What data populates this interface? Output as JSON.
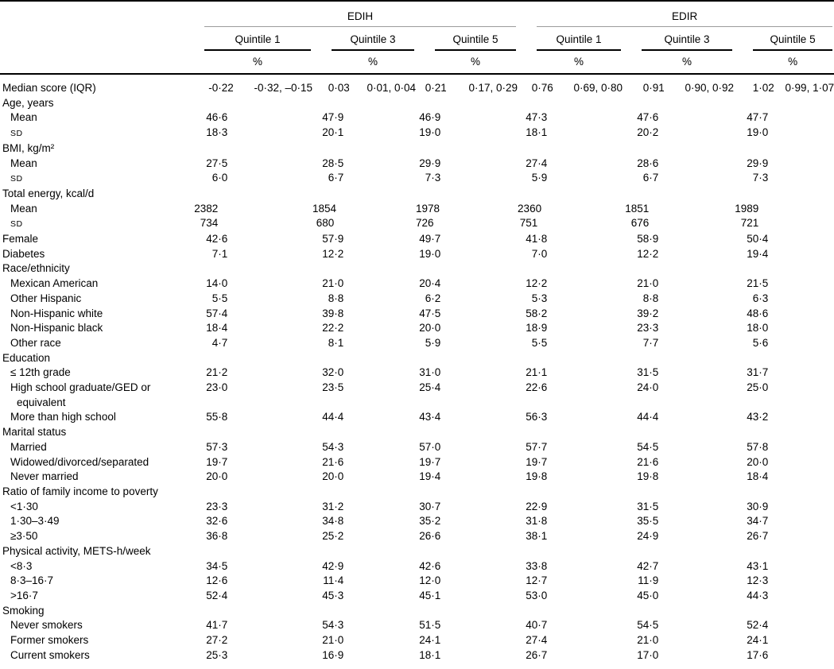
{
  "table": {
    "groups": [
      {
        "label": "EDIH",
        "quintiles": [
          "Quintile 1",
          "Quintile 3",
          "Quintile 5"
        ]
      },
      {
        "label": "EDIR",
        "quintiles": [
          "Quintile 1",
          "Quintile 3",
          "Quintile 5"
        ]
      }
    ],
    "unit_label": "%",
    "rows": [
      {
        "label": "Median score (IQR)",
        "indent": 0,
        "values": [
          "-0·22",
          "0·03",
          "0·21",
          "0·76",
          "0·91",
          "1·02"
        ],
        "iqrs": [
          "-0·32, –0·15",
          "0·01, 0·04",
          "0·17, 0·29",
          "0·69, 0·80",
          "0·90, 0·92",
          "0·99, 1·07"
        ]
      },
      {
        "label": "Age, years",
        "indent": 0
      },
      {
        "label": "Mean",
        "indent": 1,
        "values": [
          "46·6",
          "47·9",
          "46·9",
          "47·3",
          "47·6",
          "47·7"
        ]
      },
      {
        "label": "SD",
        "indent": 1,
        "smallcaps": true,
        "values": [
          "18·3",
          "20·1",
          "19·0",
          "18·1",
          "20·2",
          "19·0"
        ]
      },
      {
        "label": "BMI, kg/m²",
        "indent": 0
      },
      {
        "label": "Mean",
        "indent": 1,
        "values": [
          "27·5",
          "28·5",
          "29·9",
          "27·4",
          "28·6",
          "29·9"
        ]
      },
      {
        "label": "SD",
        "indent": 1,
        "smallcaps": true,
        "values": [
          "6·0",
          "6·7",
          "7·3",
          "5·9",
          "6·7",
          "7·3"
        ]
      },
      {
        "label": "Total energy, kcal/d",
        "indent": 0
      },
      {
        "label": "Mean",
        "indent": 1,
        "values": [
          "2382",
          "1854",
          "1978",
          "2360",
          "1851",
          "1989"
        ]
      },
      {
        "label": "SD",
        "indent": 1,
        "smallcaps": true,
        "values": [
          "734",
          "680",
          "726",
          "751",
          "676",
          "721"
        ]
      },
      {
        "label": "Female",
        "indent": 0,
        "values": [
          "42·6",
          "57·9",
          "49·7",
          "41·8",
          "58·9",
          "50·4"
        ]
      },
      {
        "label": "Diabetes",
        "indent": 0,
        "values": [
          "7·1",
          "12·2",
          "19·0",
          "7·0",
          "12·2",
          "19·4"
        ]
      },
      {
        "label": "Race/ethnicity",
        "indent": 0
      },
      {
        "label": "Mexican American",
        "indent": 1,
        "values": [
          "14·0",
          "21·0",
          "20·4",
          "12·2",
          "21·0",
          "21·5"
        ]
      },
      {
        "label": "Other Hispanic",
        "indent": 1,
        "values": [
          "5·5",
          "8·8",
          "6·2",
          "5·3",
          "8·8",
          "6·3"
        ]
      },
      {
        "label": "Non-Hispanic white",
        "indent": 1,
        "values": [
          "57·4",
          "39·8",
          "47·5",
          "58·2",
          "39·2",
          "48·6"
        ]
      },
      {
        "label": "Non-Hispanic black",
        "indent": 1,
        "values": [
          "18·4",
          "22·2",
          "20·0",
          "18·9",
          "23·3",
          "18·0"
        ]
      },
      {
        "label": "Other race",
        "indent": 1,
        "values": [
          "4·7",
          "8·1",
          "5·9",
          "5·5",
          "7·7",
          "5·6"
        ]
      },
      {
        "label": "Education",
        "indent": 0
      },
      {
        "label": "≤ 12th grade",
        "indent": 1,
        "values": [
          "21·2",
          "32·0",
          "31·0",
          "21·1",
          "31·5",
          "31·7"
        ]
      },
      {
        "label": "High school graduate/GED or equivalent",
        "indent": 1,
        "values": [
          "23·0",
          "23·5",
          "25·4",
          "22·6",
          "24·0",
          "25·0"
        ]
      },
      {
        "label": "More than high school",
        "indent": 1,
        "values": [
          "55·8",
          "44·4",
          "43·4",
          "56·3",
          "44·4",
          "43·2"
        ]
      },
      {
        "label": "Marital status",
        "indent": 0
      },
      {
        "label": "Married",
        "indent": 1,
        "values": [
          "57·3",
          "54·3",
          "57·0",
          "57·7",
          "54·5",
          "57·8"
        ]
      },
      {
        "label": "Widowed/divorced/separated",
        "indent": 1,
        "values": [
          "19·7",
          "21·6",
          "19·7",
          "19·7",
          "21·6",
          "20·0"
        ]
      },
      {
        "label": "Never married",
        "indent": 1,
        "values": [
          "20·0",
          "20·0",
          "19·4",
          "19·8",
          "19·8",
          "18·4"
        ]
      },
      {
        "label": "Ratio of family income to poverty",
        "indent": 0
      },
      {
        "label": "<1·30",
        "indent": 1,
        "values": [
          "23·3",
          "31·2",
          "30·7",
          "22·9",
          "31·5",
          "30·9"
        ]
      },
      {
        "label": "1·30–3·49",
        "indent": 1,
        "values": [
          "32·6",
          "34·8",
          "35·2",
          "31·8",
          "35·5",
          "34·7"
        ]
      },
      {
        "label": "≥3·50",
        "indent": 1,
        "values": [
          "36·8",
          "25·2",
          "26·6",
          "38·1",
          "24·9",
          "26·7"
        ]
      },
      {
        "label": "Physical activity, METS-h/week",
        "indent": 0
      },
      {
        "label": "<8·3",
        "indent": 1,
        "values": [
          "34·5",
          "42·9",
          "42·6",
          "33·8",
          "42·7",
          "43·1"
        ]
      },
      {
        "label": "8·3–16·7",
        "indent": 1,
        "values": [
          "12·6",
          "11·4",
          "12·0",
          "12·7",
          "11·9",
          "12·3"
        ]
      },
      {
        "label": ">16·7",
        "indent": 1,
        "values": [
          "52·4",
          "45·3",
          "45·1",
          "53·0",
          "45·0",
          "44·3"
        ]
      },
      {
        "label": "Smoking",
        "indent": 0
      },
      {
        "label": "Never smokers",
        "indent": 1,
        "values": [
          "41·7",
          "54·3",
          "51·5",
          "40·7",
          "54·5",
          "52·4"
        ]
      },
      {
        "label": "Former smokers",
        "indent": 1,
        "values": [
          "27·2",
          "21·0",
          "24·1",
          "27·4",
          "21·0",
          "24·1"
        ]
      },
      {
        "label": "Current smokers",
        "indent": 1,
        "values": [
          "25·3",
          "16·9",
          "18·1",
          "26·7",
          "17·0",
          "17·6"
        ]
      }
    ]
  },
  "colors": {
    "background": "#ffffff",
    "text": "#000000",
    "rule_heavy": "#000000",
    "rule_light": "#9b9b9b"
  }
}
